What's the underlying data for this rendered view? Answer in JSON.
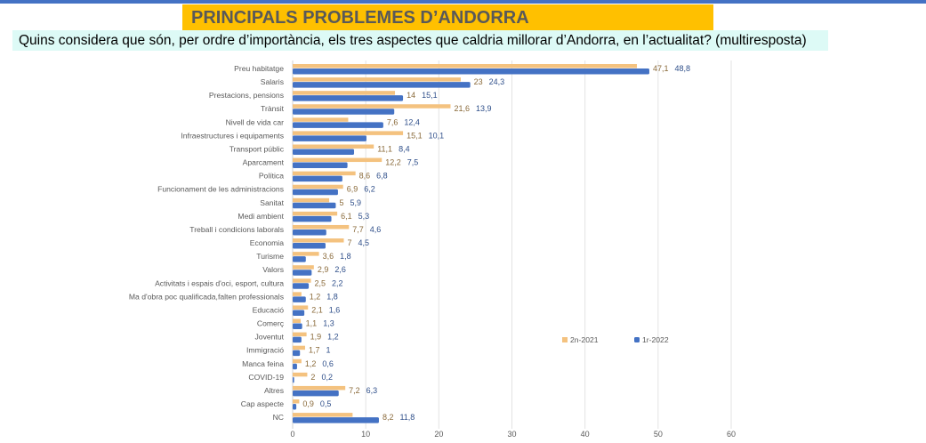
{
  "header": {
    "title": "PRINCIPALS PROBLEMES D’ANDORRA",
    "subtitle": "Quins considera que són, per ordre d’importància, els tres aspectes que caldria millorar d’Andorra, en l’actualitat? (multiresposta)"
  },
  "chart_data": {
    "type": "bar",
    "orientation": "horizontal",
    "categories": [
      "Preu habitatge",
      "Salaris",
      "Prestacions, pensions",
      "Trànsit",
      "Nivell de vida car",
      "Infraestructures i equipaments",
      "Transport públic",
      "Aparcament",
      "Política",
      "Funcionament de les administracions",
      "Sanitat",
      "Medi ambient",
      "Treball i condicions laborals",
      "Economia",
      "Turisme",
      "Valors",
      "Activitats i espais d'oci, esport, cultura",
      "Ma d'obra poc qualificada,falten professionals",
      "Educació",
      "Comerç",
      "Joventut",
      "Immigració",
      "Manca feina",
      "COVID-19",
      "Altres",
      "Cap aspecte",
      "NC"
    ],
    "series": [
      {
        "name": "2n-2021",
        "color": "#f4c27f",
        "values": [
          47.1,
          23,
          14,
          21.6,
          7.6,
          15.1,
          11.1,
          12.2,
          8.6,
          6.9,
          5,
          6.1,
          7.7,
          7,
          3.6,
          2.9,
          2.5,
          1.2,
          2.1,
          1.1,
          1.9,
          1.7,
          1.2,
          2,
          7.2,
          0.9,
          8.2
        ],
        "labels": [
          "47,1",
          "23",
          "14",
          "21,6",
          "7,6",
          "15,1",
          "11,1",
          "12,2",
          "8,6",
          "6,9",
          "5",
          "6,1",
          "7,7",
          "7",
          "3,6",
          "2,9",
          "2,5",
          "1,2",
          "2,1",
          "1,1",
          "1,9",
          "1,7",
          "1,2",
          "2",
          "7,2",
          "0,9",
          "8,2"
        ]
      },
      {
        "name": "1r-2022",
        "color": "#4472c4",
        "values": [
          48.8,
          24.3,
          15.1,
          13.9,
          12.4,
          10.1,
          8.4,
          7.5,
          6.8,
          6.2,
          5.9,
          5.3,
          4.6,
          4.5,
          1.8,
          2.6,
          2.2,
          1.8,
          1.6,
          1.3,
          1.2,
          1,
          0.6,
          0.2,
          6.3,
          0.5,
          11.8
        ],
        "labels": [
          "48,8",
          "24,3",
          "15,1",
          "13,9",
          "12,4",
          "10,1",
          "8,4",
          "7,5",
          "6,8",
          "6,2",
          "5,9",
          "5,3",
          "4,6",
          "4,5",
          "1,8",
          "2,6",
          "2,2",
          "1,8",
          "1,6",
          "1,3",
          "1,2",
          "1",
          "0,6",
          "0,2",
          "6,3",
          "0,5",
          "11,8"
        ]
      }
    ],
    "xlim": [
      0,
      60
    ],
    "xticks": [
      "0",
      "10",
      "20",
      "30",
      "40",
      "50",
      "60"
    ],
    "grid": true,
    "legend": "right-middle"
  }
}
